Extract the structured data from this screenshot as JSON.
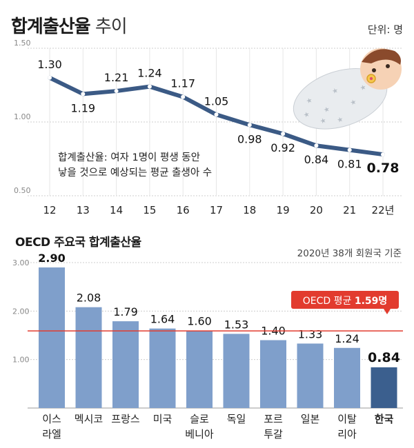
{
  "header": {
    "title_bold": "합계출산율",
    "title_light": "추이",
    "unit": "단위: 명"
  },
  "annotation": {
    "line1": "합계출산율: 여자 1명이 평생 동안",
    "line2": "낳을 것으로 예상되는 평균 출생아 수"
  },
  "oecd_section": {
    "title": "OECD 주요국 합계출산율",
    "basis": "2020년 38개 회원국 기준",
    "avg_label": "OECD 평균",
    "avg_value": "1.59명"
  },
  "colors": {
    "line": "#3b5a85",
    "bar": "#7f9fcb",
    "bar_highlight": "#3b5f8e",
    "avg_line": "#e23b2e",
    "grid": "#cccccc"
  },
  "chart_data": [
    {
      "type": "line",
      "x": [
        "12",
        "13",
        "14",
        "15",
        "16",
        "17",
        "18",
        "19",
        "20",
        "21",
        "22년"
      ],
      "values": [
        1.3,
        1.19,
        1.21,
        1.24,
        1.17,
        1.05,
        0.98,
        0.92,
        0.84,
        0.81,
        0.78
      ],
      "labels": [
        "1.30",
        "1.19",
        "1.21",
        "1.24",
        "1.17",
        "1.05",
        "0.98",
        "0.92",
        "0.84",
        "0.81",
        "0.78"
      ],
      "yticks": [
        "0.50",
        "1.00",
        "1.50"
      ],
      "ylim": [
        0.5,
        1.5
      ],
      "grid": true
    },
    {
      "type": "bar",
      "categories": [
        [
          "이스",
          "라엘"
        ],
        [
          "멕시코"
        ],
        [
          "프랑스"
        ],
        [
          "미국"
        ],
        [
          "슬로",
          "베니아"
        ],
        [
          "독일"
        ],
        [
          "포르",
          "투갈"
        ],
        [
          "일본"
        ],
        [
          "이탈",
          "리아"
        ],
        [
          "한국"
        ]
      ],
      "values": [
        2.9,
        2.08,
        1.79,
        1.64,
        1.6,
        1.53,
        1.4,
        1.33,
        1.24,
        0.84
      ],
      "labels": [
        "2.90",
        "2.08",
        "1.79",
        "1.64",
        "1.60",
        "1.53",
        "1.40",
        "1.33",
        "1.24",
        "0.84"
      ],
      "highlight_index": 9,
      "reference_line": 1.59,
      "yticks": [
        "1.00",
        "2.00",
        "3.00"
      ],
      "ylim": [
        0,
        3
      ],
      "grid": true
    }
  ]
}
